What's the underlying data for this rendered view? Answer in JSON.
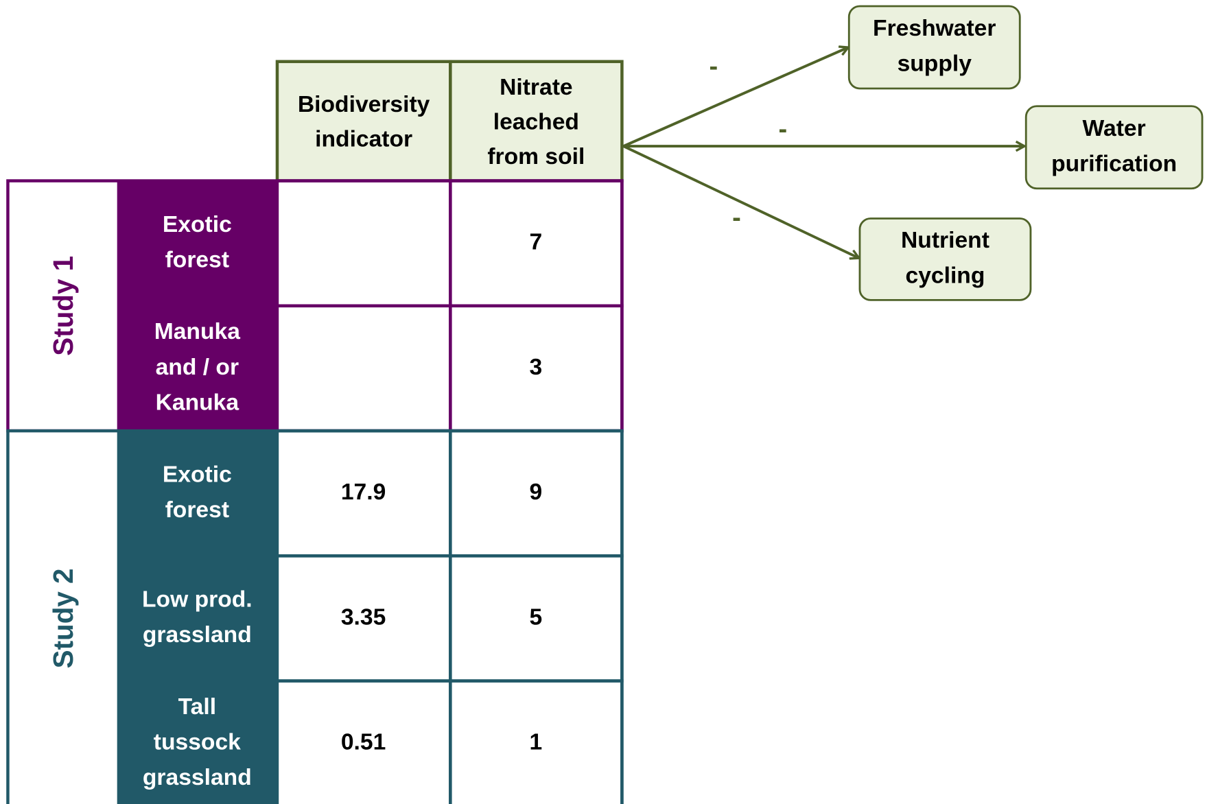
{
  "table": {
    "columns": [
      [
        "Biodiversity",
        "indicator"
      ],
      [
        "Nitrate",
        "leached",
        "from soil"
      ]
    ],
    "studies": [
      {
        "label": "Study 1",
        "rows": [
          {
            "name": [
              "Exotic",
              "forest"
            ],
            "nitrate": 7
          },
          {
            "name": [
              "Manuka",
              "and  / or",
              "Kanuka"
            ],
            "nitrate": 3
          }
        ]
      },
      {
        "label": "Study 2",
        "rows": [
          {
            "name": [
              "Exotic",
              "forest"
            ],
            "biodiversity": 17.9,
            "nitrate": 9
          },
          {
            "name": [
              "Low prod.",
              "grassland"
            ],
            "biodiversity": 3.35,
            "nitrate": 5
          },
          {
            "name": [
              "Tall",
              "tussock",
              "grassland"
            ],
            "biodiversity": 0.51,
            "nitrate": 1
          }
        ]
      }
    ]
  },
  "services": [
    {
      "label": [
        "Freshwater",
        "supply"
      ],
      "sign": "-"
    },
    {
      "label": [
        "Water",
        "purification"
      ],
      "sign": "-"
    },
    {
      "label": [
        "Nutrient",
        "cycling"
      ],
      "sign": "-"
    }
  ]
}
